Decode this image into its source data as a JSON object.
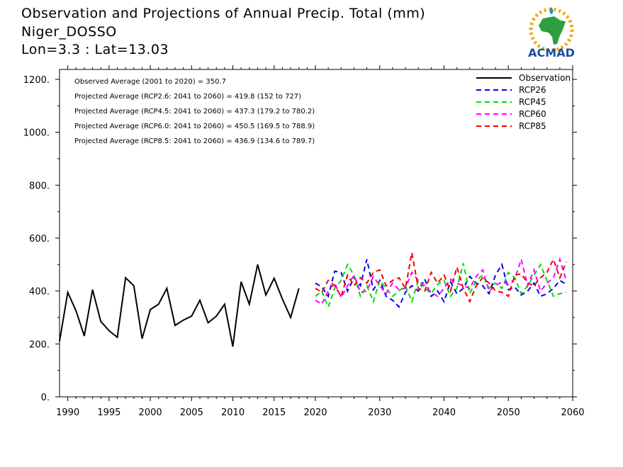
{
  "header": {
    "title": "Observation and Projections of Annual Precip. Total (mm)",
    "location": "Niger_DOSSO",
    "coords": "Lon=3.3 : Lat=13.03"
  },
  "logo": {
    "text": "ACMAD",
    "colors": {
      "africa": "#2e9e3e",
      "sun": "#f2a60a",
      "text": "#1b4f9c",
      "drop": "#1a8fd8"
    }
  },
  "stats": [
    "Observed Average (2001 to 2020) = 350.7",
    "Projected Average (RCP2.6: 2041 to 2060) = 419.8 (152 to 727)",
    "Projected Average (RCP4.5: 2041 to 2060) = 437.3 (179.2 to 780.2)",
    "Projected Average (RCP6.0: 2041 to 2060) = 450.5 (169.5 to 788.9)",
    "Projected Average (RCP8.5: 2041 to 2060) = 436.9 (134.6 to 789.7)"
  ],
  "chart_data": {
    "type": "line",
    "xlim": [
      1989,
      2060
    ],
    "ylim": [
      0,
      1200
    ],
    "x_ticks": [
      "1990",
      "1995",
      "2000",
      "2005",
      "2010",
      "2015",
      "2020",
      "2030",
      "2040",
      "2050",
      "2060"
    ],
    "y_ticks": [
      "0.",
      "200.",
      "400.",
      "600.",
      "800.",
      "1000.",
      "1200."
    ],
    "legend_position": "top-right",
    "series": [
      {
        "name": "Observation",
        "color": "#000000",
        "dash": false,
        "start": 1989,
        "values": [
          210,
          395,
          325,
          230,
          405,
          285,
          250,
          225,
          450,
          420,
          220,
          330,
          350,
          410,
          270,
          290,
          305,
          365,
          280,
          305,
          350,
          190,
          435,
          350,
          500,
          385,
          448,
          370,
          300,
          410
        ]
      },
      {
        "name": "RCP26",
        "color": "#0000ee",
        "dash": true,
        "start": 2020,
        "values": [
          430,
          415,
          380,
          475,
          470,
          400,
          450,
          420,
          520,
          405,
          440,
          380,
          365,
          340,
          395,
          420,
          400,
          445,
          380,
          400,
          360,
          435,
          390,
          410,
          455,
          430,
          420,
          390,
          460,
          500,
          405,
          415,
          385,
          400,
          430,
          380,
          390,
          410,
          440,
          425
        ]
      },
      {
        "name": "RCP45",
        "color": "#00dd00",
        "dash": true,
        "start": 2020,
        "values": [
          380,
          400,
          340,
          410,
          440,
          500,
          460,
          380,
          420,
          360,
          440,
          410,
          380,
          400,
          420,
          360,
          440,
          410,
          390,
          425,
          440,
          380,
          410,
          505,
          390,
          440,
          460,
          410,
          430,
          410,
          470,
          450,
          390,
          420,
          460,
          500,
          440,
          380,
          390,
          395
        ]
      },
      {
        "name": "RCP60",
        "color": "#ff00ff",
        "dash": true,
        "start": 2020,
        "values": [
          365,
          350,
          400,
          430,
          375,
          420,
          460,
          395,
          400,
          455,
          420,
          390,
          430,
          405,
          410,
          470,
          440,
          420,
          395,
          380,
          410,
          445,
          430,
          420,
          410,
          455,
          480,
          400,
          420,
          435,
          425,
          445,
          520,
          420,
          480,
          400,
          430,
          450,
          520,
          440
        ]
      },
      {
        "name": "RCP85",
        "color": "#ee0000",
        "dash": true,
        "start": 2020,
        "values": [
          410,
          395,
          440,
          420,
          380,
          460,
          420,
          450,
          430,
          470,
          480,
          420,
          440,
          450,
          410,
          545,
          410,
          400,
          470,
          430,
          460,
          400,
          490,
          410,
          360,
          420,
          450,
          430,
          400,
          395,
          380,
          460,
          465,
          430,
          420,
          450,
          470,
          520,
          450,
          510
        ]
      }
    ]
  }
}
